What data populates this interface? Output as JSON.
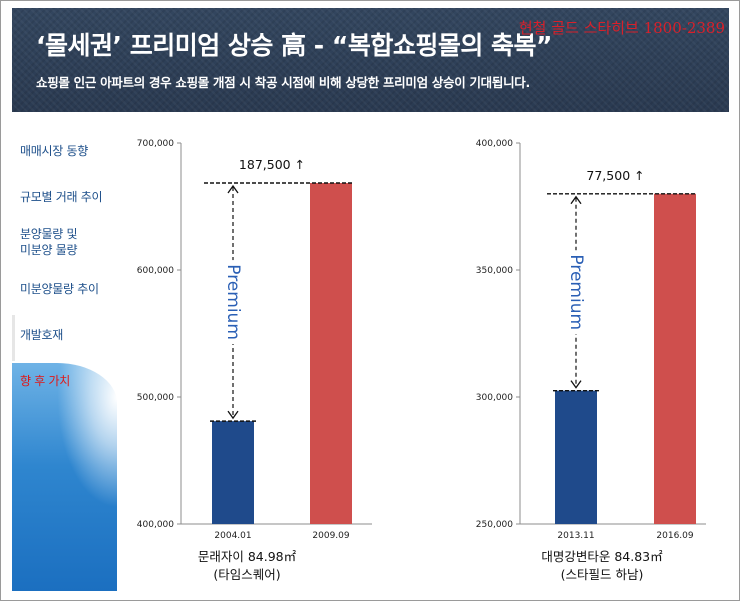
{
  "header": {
    "title": "‘몰세권’ 프리미엄 상승 高 - “복합쇼핑몰의 축복”",
    "subtitle": "쇼핑몰 인근 아파트의 경우 쇼핑몰 개점 시 착공 시점에 비해 상당한 프리미엄 상승이 기대됩니다.",
    "phone": "현철 골드 스타히브 1800-2389"
  },
  "sidebar": {
    "items": [
      {
        "label": "매매시장 동향",
        "active": false
      },
      {
        "label": "규모별 거래 추이",
        "active": false
      },
      {
        "label": "분양물량 및\n미분양 물량",
        "active": false
      },
      {
        "label": "미분양물량 추이",
        "active": false
      },
      {
        "label": "개발호재",
        "active": false
      },
      {
        "label": "향 후 가치",
        "active": true
      }
    ]
  },
  "chart_data": [
    {
      "type": "bar",
      "categories": [
        "2004.01",
        "2009.09"
      ],
      "values": [
        481000,
        668500
      ],
      "colors": [
        "#1f4a8b",
        "#cf4f4d"
      ],
      "ylim": [
        400000,
        700000
      ],
      "yticks": [
        "400,000",
        "500,000",
        "600,000",
        "700,000"
      ],
      "annotation": "187,500 ↑",
      "bracket_label": "Premium",
      "caption_line1": "문래자이 84.98㎡",
      "caption_line2": "(타임스퀘어)"
    },
    {
      "type": "bar",
      "categories": [
        "2013.11",
        "2016.09"
      ],
      "values": [
        302500,
        380000
      ],
      "colors": [
        "#1f4a8b",
        "#cf4f4d"
      ],
      "ylim": [
        250000,
        400000
      ],
      "yticks": [
        "250,000",
        "300,000",
        "350,000",
        "400,000"
      ],
      "annotation": "77,500 ↑",
      "bracket_label": "Premium",
      "caption_line1": "대명강변타운 84.83㎡",
      "caption_line2": "(스타필드 하남)"
    }
  ]
}
